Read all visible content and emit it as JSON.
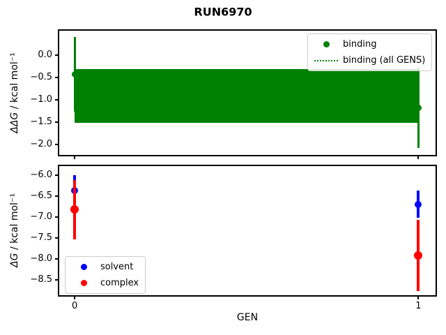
{
  "figure": {
    "title": "RUN6970",
    "background": "#ffffff"
  },
  "chart_data": [
    {
      "type": "scatter-errorbar",
      "name": "ddg-vs-gen",
      "ylabel_prefix": "ΔΔG",
      "ylabel_rest": " / kcal mol⁻¹",
      "xlabel": "",
      "xlim": [
        -0.045,
        1.05
      ],
      "ylim": [
        -2.23,
        0.54
      ],
      "grid": false,
      "yticks": [
        {
          "v": 0.0,
          "label": "0.0"
        },
        {
          "v": -0.5,
          "label": "−0.5"
        },
        {
          "v": -1.0,
          "label": "−1.0"
        },
        {
          "v": -1.5,
          "label": "−1.5"
        },
        {
          "v": -2.0,
          "label": "−2.0"
        }
      ],
      "xticks": [
        {
          "v": 0,
          "label": ""
        },
        {
          "v": 1,
          "label": ""
        }
      ],
      "series": [
        {
          "name": "binding",
          "color": "#008000",
          "x": [
            0,
            1
          ],
          "y": [
            -0.43,
            -1.18
          ],
          "yerr": [
            0.83,
            0.9
          ]
        }
      ],
      "band": {
        "name": "binding (all GENS)",
        "color": "#008000",
        "line_style": "dotted",
        "x": [
          0,
          1
        ],
        "y_center": -0.92,
        "y_half_range": 0.6
      },
      "legend": {
        "position": "upper right",
        "entries": [
          {
            "label": "binding",
            "marker": "dot",
            "color": "#008000"
          },
          {
            "label": "binding (all GENS)",
            "marker": "dotted-line",
            "color": "#008000"
          }
        ]
      }
    },
    {
      "type": "scatter-errorbar",
      "name": "dg-vs-gen",
      "ylabel_prefix": "ΔG",
      "ylabel_rest": " / kcal mol⁻¹",
      "xlabel": "GEN",
      "xlim": [
        -0.045,
        1.05
      ],
      "ylim": [
        -8.87,
        -5.79
      ],
      "grid": false,
      "yticks": [
        {
          "v": -6.0,
          "label": "−6.0"
        },
        {
          "v": -6.5,
          "label": "−6.5"
        },
        {
          "v": -7.0,
          "label": "−7.0"
        },
        {
          "v": -7.5,
          "label": "−7.5"
        },
        {
          "v": -8.0,
          "label": "−8.0"
        },
        {
          "v": -8.5,
          "label": "−8.5"
        }
      ],
      "xticks": [
        {
          "v": 0,
          "label": "0"
        },
        {
          "v": 1,
          "label": "1"
        }
      ],
      "series": [
        {
          "name": "solvent",
          "color": "#0000ff",
          "x": [
            0,
            1
          ],
          "y": [
            -6.38,
            -6.7
          ],
          "yerr": [
            0.37,
            0.32
          ]
        },
        {
          "name": "complex",
          "color": "#ff0000",
          "x": [
            0,
            1
          ],
          "y": [
            -6.83,
            -7.92
          ],
          "yerr": [
            0.7,
            0.85
          ]
        }
      ],
      "legend": {
        "position": "lower left",
        "entries": [
          {
            "label": "solvent",
            "marker": "dot",
            "color": "#0000ff"
          },
          {
            "label": "complex",
            "marker": "dot",
            "color": "#ff0000"
          }
        ]
      }
    }
  ]
}
